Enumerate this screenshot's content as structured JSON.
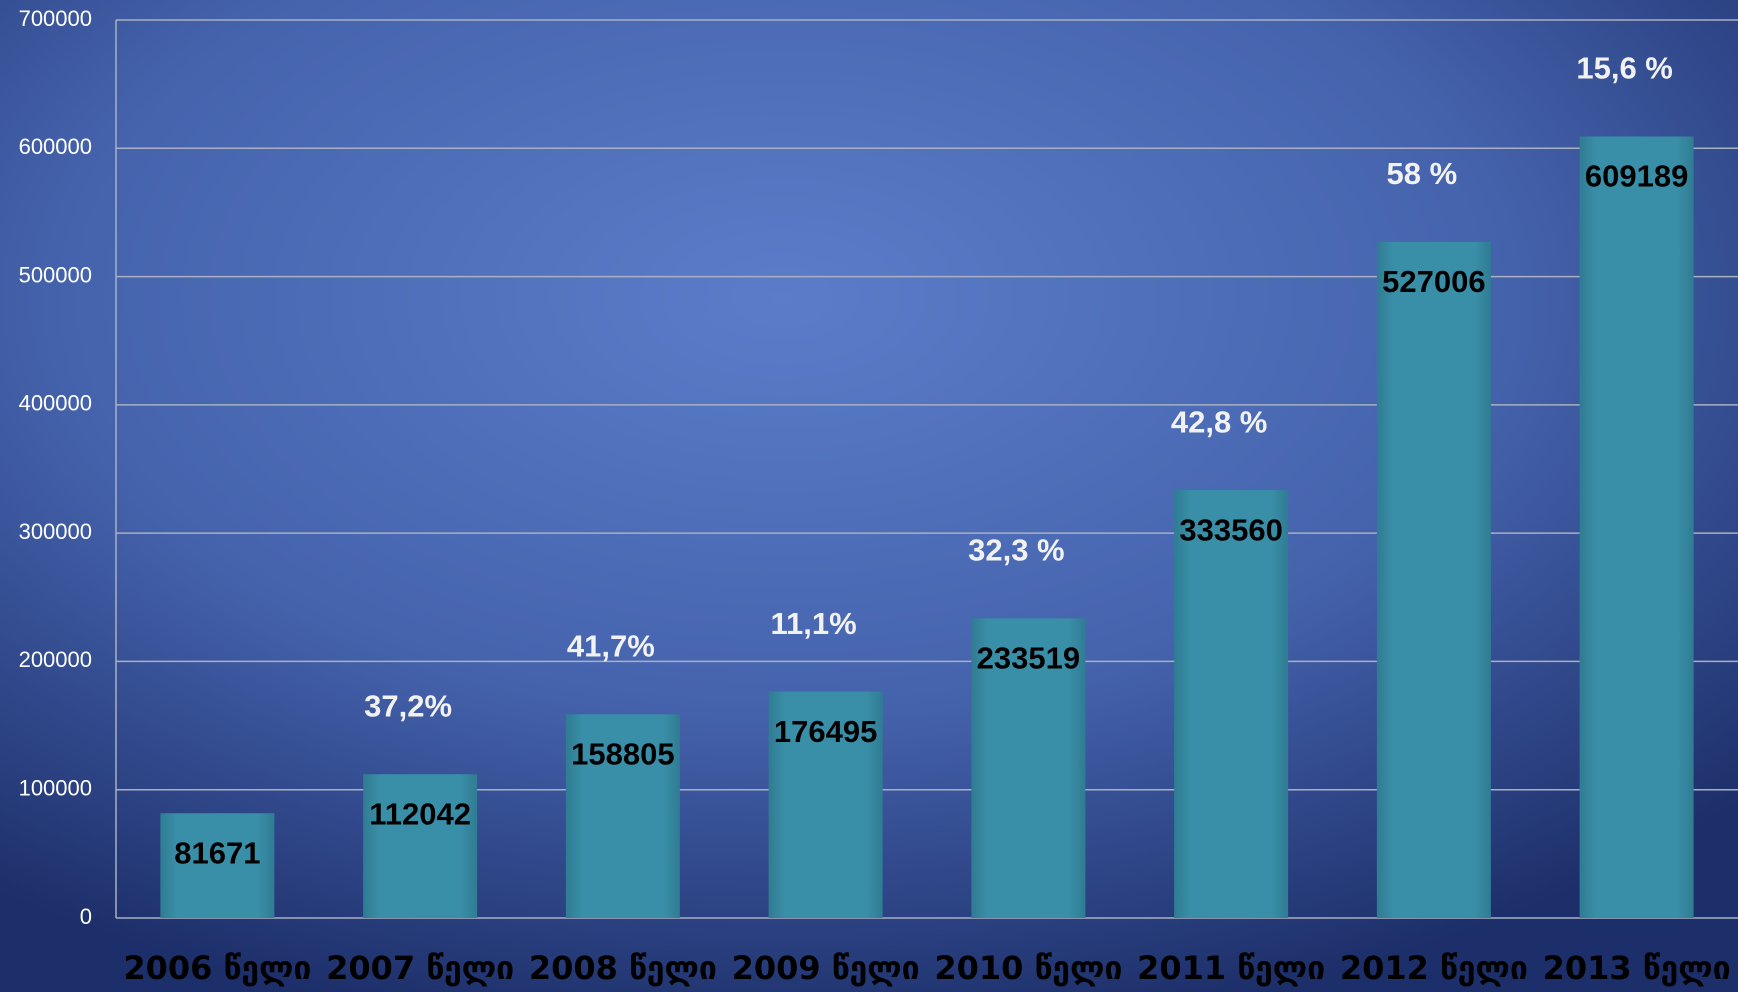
{
  "chart_data": {
    "type": "bar",
    "categories": [
      "2006 წელი",
      "2007 წელი",
      "2008 წელი",
      "2009 წელი",
      "2010 წელი",
      "2011 წელი",
      "2012 წელი",
      "2013 წელი"
    ],
    "values": [
      81671,
      112042,
      158805,
      176495,
      233519,
      333560,
      527006,
      609189
    ],
    "annotations": [
      null,
      "37,2%",
      "41,7%",
      "11,1%",
      "32,3 %",
      "42,8 %",
      "58 %",
      "15,6 %"
    ],
    "color": "#3a8fa8",
    "ylim": [
      0,
      700000
    ],
    "yticks": [
      0,
      100000,
      200000,
      300000,
      400000,
      500000,
      600000,
      700000
    ],
    "grid": true
  }
}
